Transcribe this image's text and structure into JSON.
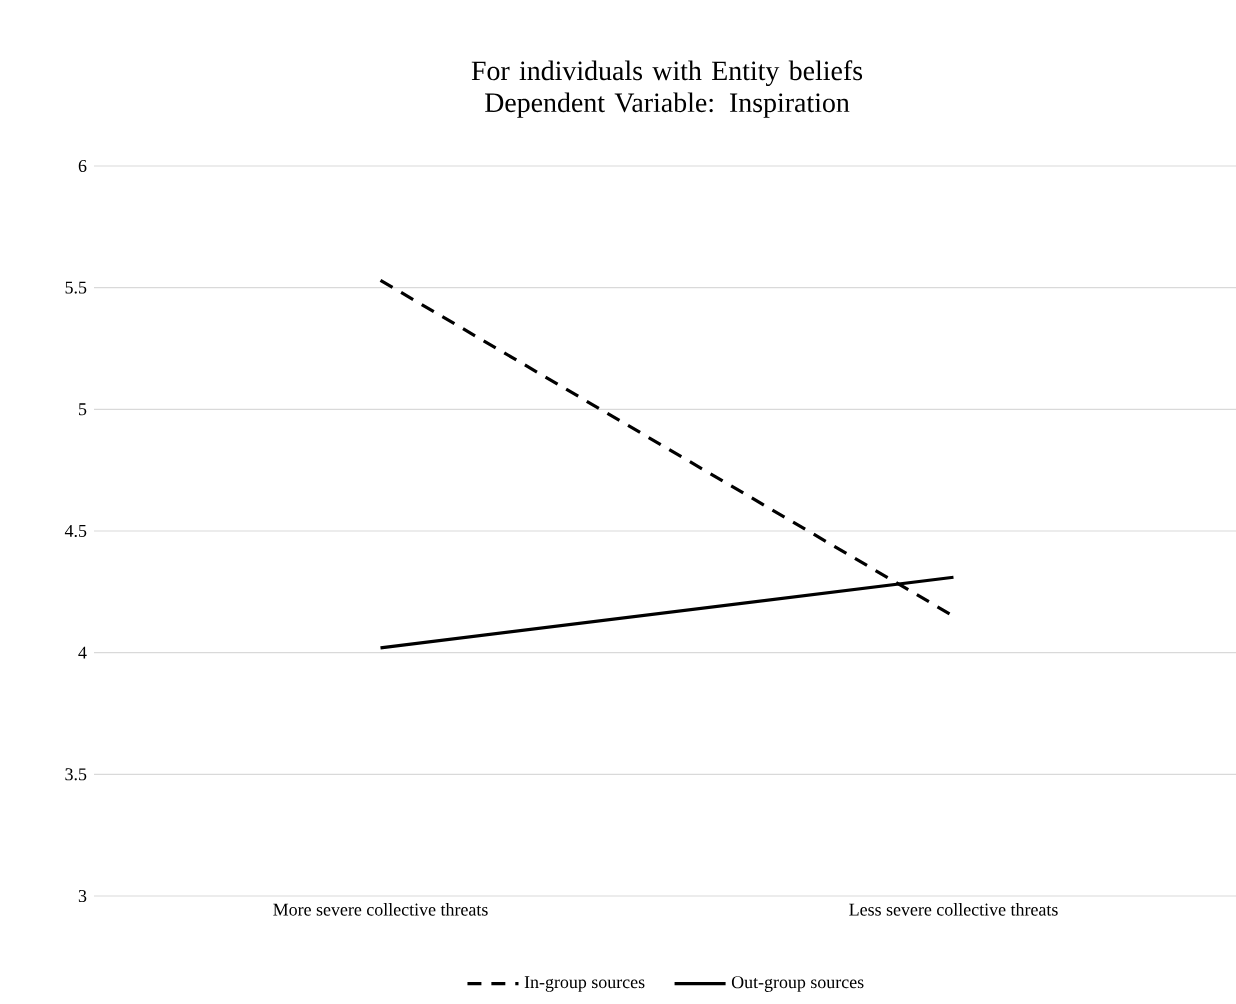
{
  "chart_data": {
    "type": "line",
    "title": "For individuals with Entity beliefs\nDependent Variable: Inspiration",
    "categories": [
      "More severe collective threats",
      "Less severe collective threats"
    ],
    "series": [
      {
        "name": "In-group sources",
        "color": "#000000",
        "line_style": "dashed",
        "values": [
          5.53,
          4.15
        ]
      },
      {
        "name": "Out-group sources",
        "color": "#000000",
        "line_style": "solid",
        "values": [
          4.02,
          4.31
        ]
      }
    ],
    "ylim": [
      3,
      6
    ],
    "yticks": [
      3,
      3.5,
      4,
      4.5,
      5,
      5.5,
      6
    ],
    "grid": "y",
    "legend": "bottom",
    "marker": "none"
  }
}
